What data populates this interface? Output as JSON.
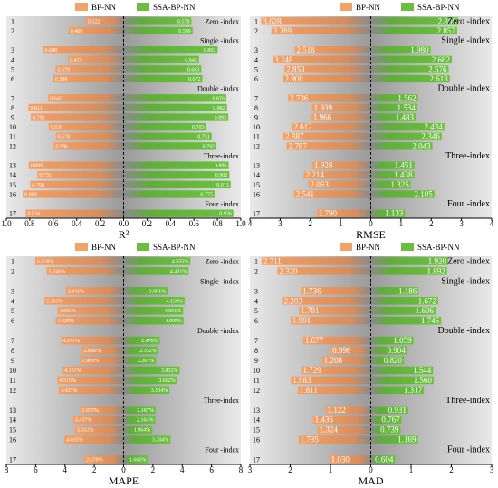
{
  "colors": {
    "bp": "#f0a46a",
    "ssa": "#6cbf3c",
    "bg_dark": "#9a9a9a",
    "bg_light": "#e9e9e9"
  },
  "legend": {
    "bp": "BP-NN",
    "ssa": "SSA-BP-NN"
  },
  "chart_data": [
    {
      "type": "bar",
      "orientation": "diverging-horizontal",
      "xlabel": "R²",
      "xlim": [
        -1.0,
        1.0
      ],
      "xticks": [
        "1.0",
        "0.8",
        "0.6",
        "0.4",
        "0.2",
        "0.0",
        "0.2",
        "0.4",
        "0.6",
        "0.8",
        "1.0"
      ],
      "rows": [
        "1",
        "2",
        "3",
        "4",
        "5",
        "6",
        "7",
        "8",
        "9",
        "10",
        "11",
        "12",
        "13",
        "14",
        "15",
        "16",
        "17"
      ],
      "groups": [
        "Zero -index",
        "Single -index",
        "Double -index",
        "Three-index",
        "Four -index"
      ],
      "series": [
        {
          "name": "BP-NN",
          "values": [
            0.322,
            0.469,
            0.688,
            0.475,
            0.579,
            0.598,
            0.643,
            0.811,
            0.791,
            0.639,
            0.578,
            0.596,
            0.809,
            0.735,
            0.796,
            0.86,
            0.834
          ]
        },
        {
          "name": "SSA-BP-NN",
          "values": [
            0.578,
            0.589,
            0.802,
            0.643,
            0.663,
            0.672,
            0.876,
            0.882,
            0.893,
            0.703,
            0.751,
            0.792,
            0.896,
            0.902,
            0.913,
            0.775,
            0.936
          ]
        }
      ],
      "labels_bp": [
        "0.322",
        "0.469",
        "0.688",
        "0.475",
        "0.579",
        "0.598",
        "0.643",
        "0.811",
        "0.791",
        "0.639",
        "0.578",
        "0.596",
        "0.809",
        "0.735",
        "0.796",
        "0.860",
        "0.834"
      ],
      "labels_ssa": [
        "0.578",
        "0.589",
        "0.802",
        "0.643",
        "0.663",
        "0.672",
        "0.876",
        "0.882",
        "0.893",
        "0.703",
        "0.751",
        "0.792",
        "0.896",
        "0.902",
        "0.913",
        "0.775",
        "0.936"
      ]
    },
    {
      "type": "bar",
      "orientation": "diverging-horizontal",
      "xlabel": "RMSE",
      "xlim": [
        -4,
        4
      ],
      "xticks": [
        "4",
        "3",
        "2",
        "1",
        "0",
        "1",
        "2",
        "3",
        "4"
      ],
      "rows": [
        "1",
        "2",
        "3",
        "4",
        "5",
        "6",
        "7",
        "8",
        "9",
        "10",
        "11",
        "12",
        "13",
        "14",
        "15",
        "16",
        "17"
      ],
      "groups": [
        "Zero -index",
        "Single -index",
        "Double -index",
        "Three-index",
        "Four -index"
      ],
      "series": [
        {
          "name": "BP-NN",
          "values": [
            3.628,
            3.289,
            2.518,
            3.248,
            2.853,
            2.908,
            2.736,
            1.939,
            1.966,
            2.612,
            2.887,
            2.787,
            1.928,
            2.214,
            2.063,
            2.541,
            1.79
          ]
        },
        {
          "name": "SSA-BP-NN",
          "values": [
            2.886,
            2.857,
            1.98,
            2.682,
            2.576,
            2.613,
            1.562,
            1.534,
            1.483,
            2.434,
            2.346,
            2.043,
            1.451,
            1.438,
            1.325,
            2.105,
            1.133
          ]
        }
      ],
      "labels_bp": [
        "3.628",
        "3.289",
        "2.518",
        "3.248",
        "2.853",
        "2.908",
        "2.736",
        "1.939",
        "1.966",
        "2.612",
        "2.887",
        "2.787",
        "1.928",
        "2.214",
        "2.063",
        "2.541",
        "1.790"
      ],
      "labels_ssa": [
        "2.886",
        "2.857",
        "1.980",
        "2.682",
        "2.576",
        "2.613",
        "1.562",
        "1.534",
        "1.483",
        "2.434",
        "2.346",
        "2.043",
        "1.451",
        "1.438",
        "1.325",
        "2.105",
        "1.133"
      ]
    },
    {
      "type": "bar",
      "orientation": "diverging-horizontal",
      "xlabel": "MAPE",
      "xlim": [
        -8,
        8
      ],
      "xticks": [
        "8",
        "6",
        "4",
        "2",
        "0",
        "2",
        "4",
        "6",
        "8"
      ],
      "rows": [
        "1",
        "2",
        "3",
        "4",
        "5",
        "6",
        "7",
        "8",
        "9",
        "10",
        "11",
        "12",
        "13",
        "14",
        "15",
        "16",
        "17"
      ],
      "groups": [
        "Zero -index",
        "Single -index",
        "Double -index",
        "Three-index",
        "Four -index"
      ],
      "series": [
        {
          "name": "BP-NN",
          "values": [
            6.028,
            5.246,
            3.941,
            5.395,
            4.501,
            4.625,
            4.271,
            2.836,
            2.969,
            4.151,
            4.515,
            4.427,
            2.973,
            3.437,
            3.312,
            4.035,
            2.679
          ]
        },
        {
          "name": "SSA-BP-NN",
          "values": [
            4.555,
            4.431,
            3.001,
            4.159,
            4.061,
            4.095,
            2.478,
            2.352,
            2.207,
            3.832,
            3.662,
            3.134,
            2.187,
            2.164,
            1.964,
            3.204,
            1.66
          ]
        }
      ],
      "labels_bp": [
        "6.028%",
        "5.246%",
        "3.941%",
        "5.395%",
        "4.501%",
        "4.625%",
        "4.271%",
        "2.836%",
        "2.969%",
        "4.151%",
        "4.515%",
        "4.427%",
        "2.973%",
        "3.437%",
        "3.312%",
        "4.035%",
        "2.679%"
      ],
      "labels_ssa": [
        "4.555%",
        "4.431%",
        "3.001%",
        "4.159%",
        "4.061%",
        "4.095%",
        "2.478%",
        "2.352%",
        "2.207%",
        "3.832%",
        "3.662%",
        "3.134%",
        "2.187%",
        "2.164%",
        "1.964%",
        "3.204%",
        "1.660%"
      ]
    },
    {
      "type": "bar",
      "orientation": "diverging-horizontal",
      "xlabel": "MAD",
      "xlim": [
        -3,
        3
      ],
      "xticks": [
        "3",
        "2",
        "1",
        "0",
        "1",
        "2",
        "3"
      ],
      "rows": [
        "1",
        "2",
        "3",
        "4",
        "5",
        "6",
        "7",
        "8",
        "9",
        "10",
        "11",
        "12",
        "13",
        "14",
        "15",
        "16",
        "17"
      ],
      "groups": [
        "Zero -index",
        "Single -index",
        "Double -index",
        "Three-index",
        "Four -index"
      ],
      "series": [
        {
          "name": "BP-NN",
          "values": [
            2.711,
            2.32,
            1.736,
            2.203,
            1.781,
            1.991,
            1.677,
            0.996,
            1.208,
            1.729,
            1.983,
            1.811,
            1.122,
            1.436,
            1.324,
            1.795,
            1.03
          ]
        },
        {
          "name": "SSA-BP-NN",
          "values": [
            1.92,
            1.892,
            1.186,
            1.672,
            1.606,
            1.745,
            1.059,
            0.904,
            0.82,
            1.544,
            1.56,
            1.317,
            0.931,
            0.767,
            0.739,
            1.169,
            0.604
          ]
        }
      ],
      "labels_bp": [
        "2.711",
        "2.320",
        "1.736",
        "2.203",
        "1.781",
        "1.991",
        "1.677",
        "0.996",
        "1.208",
        "1.729",
        "1.983",
        "1.811",
        "1.122",
        "1.436",
        "1.324",
        "1.795",
        "1.030"
      ],
      "labels_ssa": [
        "1.920",
        "1.892",
        "1.186",
        "1.672",
        "1.606",
        "1.745",
        "1.059",
        "0.904",
        "0.820",
        "1.544",
        "1.560",
        "1.317",
        "0.931",
        "0.767",
        "0.739",
        "1.169",
        "0.604"
      ]
    }
  ]
}
